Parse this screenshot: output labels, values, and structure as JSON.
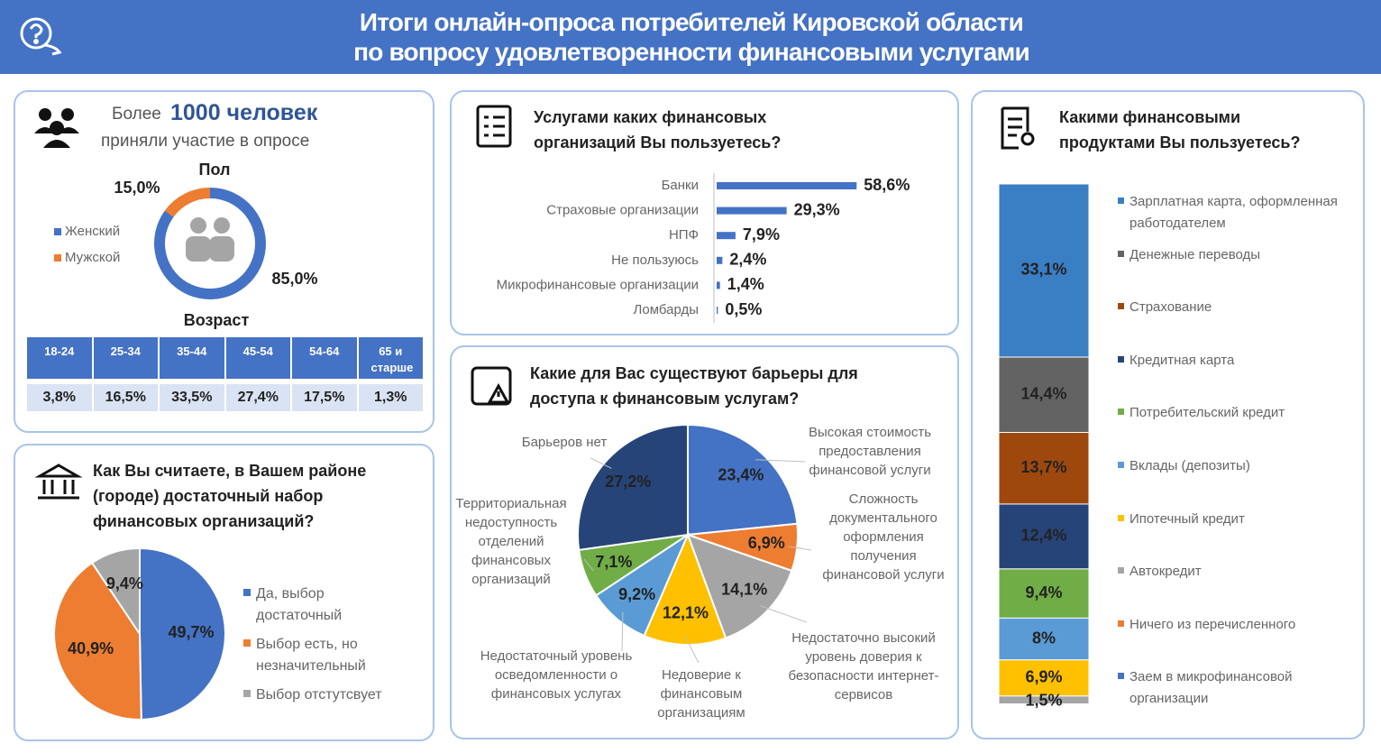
{
  "header": {
    "title_lines": [
      "Итоги онлайн-опроса потребителей Кировской области",
      "по вопросу удовлетворенности финансовыми услугами"
    ]
  },
  "participants": {
    "prefix": "Более",
    "count": "1000 человек",
    "text": "приняли участие в опросе"
  },
  "age_table": {
    "title": "Возраст",
    "headers": [
      "18-24",
      "25-34",
      "35-44",
      "45-54",
      "54-64",
      "65 и старше"
    ],
    "values": [
      "3,8%",
      "16,5%",
      "33,5%",
      "27,4%",
      "17,5%",
      "1,3%"
    ]
  },
  "chart_data": [
    {
      "type": "donut",
      "title": "Пол",
      "categories": [
        "Женский",
        "Мужской"
      ],
      "values": [
        85.0,
        15.0
      ],
      "value_labels": [
        "85,0%",
        "15,0%"
      ],
      "colors": [
        "#4472c4",
        "#ed7d31"
      ]
    },
    {
      "type": "hbar",
      "title": "Услугами каких финансовых организаций Вы пользуетесь?",
      "categories": [
        "Банки",
        "Страховые организации",
        "НПФ",
        "Не пользуюсь",
        "Микрофинансовые организации",
        "Ломбарды"
      ],
      "values": [
        58.6,
        29.3,
        7.9,
        2.4,
        1.4,
        0.5
      ],
      "value_labels": [
        "58,6%",
        "29,3%",
        "7,9%",
        "2,4%",
        "1,4%",
        "0,5%"
      ],
      "color": "#4472c4"
    },
    {
      "type": "pie",
      "title": "Как Вы считаете, в Вашем районе (городе) достаточный набор финансовых организаций?",
      "categories": [
        "Да, выбор достаточный",
        "Выбор есть, но незначительный",
        "Выбор отстутсвует"
      ],
      "values": [
        49.7,
        40.9,
        9.4
      ],
      "value_labels": [
        "49,7%",
        "40,9%",
        "9,4%"
      ],
      "colors": [
        "#4472c4",
        "#ed7d31",
        "#a5a5a5"
      ]
    },
    {
      "type": "pie",
      "title": "Какие для Вас существуют барьеры для доступа к финансовым услугам?",
      "categories": [
        "Высокая стоимость предоставления финансовой услуги",
        "Сложность документального оформления получения финансовой услуги",
        "Недостаточно высокий уровень доверия к безопасности интернет-сервисов",
        "Недоверие к финансовым организациям",
        "Недостаточный уровень осведомленности о финансовых услугах",
        "Территориальная недоступность отделений финансовых организаций",
        "Барьеров нет"
      ],
      "values": [
        23.4,
        6.9,
        14.1,
        12.1,
        9.2,
        7.1,
        27.2
      ],
      "value_labels": [
        "23,4%",
        "6,9%",
        "14,1%",
        "12,1%",
        "9,2%",
        "7,1%",
        "27,2%"
      ],
      "colors": [
        "#4472c4",
        "#ed7d31",
        "#a5a5a5",
        "#ffc000",
        "#5b9bd5",
        "#70ad47",
        "#264478"
      ]
    },
    {
      "type": "stacked_bar",
      "title": "Какими финансовыми продуктами Вы пользуетесь?",
      "categories": [
        "Зарплатная карта, оформленная работодателем",
        "Денежные переводы",
        "Страхование",
        "Кредитная карта",
        "Потребительский кредит",
        "Вклады (депозиты)",
        "Ипотечный кредит",
        "Автокредит",
        "Ничего из перечисленного",
        "Заем в микрофинансовой организации"
      ],
      "values": [
        33.1,
        14.4,
        13.7,
        12.4,
        9.4,
        8,
        6.9,
        1.5,
        null,
        null
      ],
      "value_labels": [
        "33,1%",
        "14,4%",
        "13,7%",
        "12,4%",
        "9,4%",
        "8%",
        "6,9%",
        "1,5%",
        null,
        null
      ],
      "colors": [
        "#3a7ec4",
        "#636363",
        "#9e480e",
        "#264478",
        "#70ad47",
        "#5b9bd5",
        "#ffc000",
        "#a5a5a5",
        "#ed7d31",
        "#4472c4"
      ]
    }
  ]
}
